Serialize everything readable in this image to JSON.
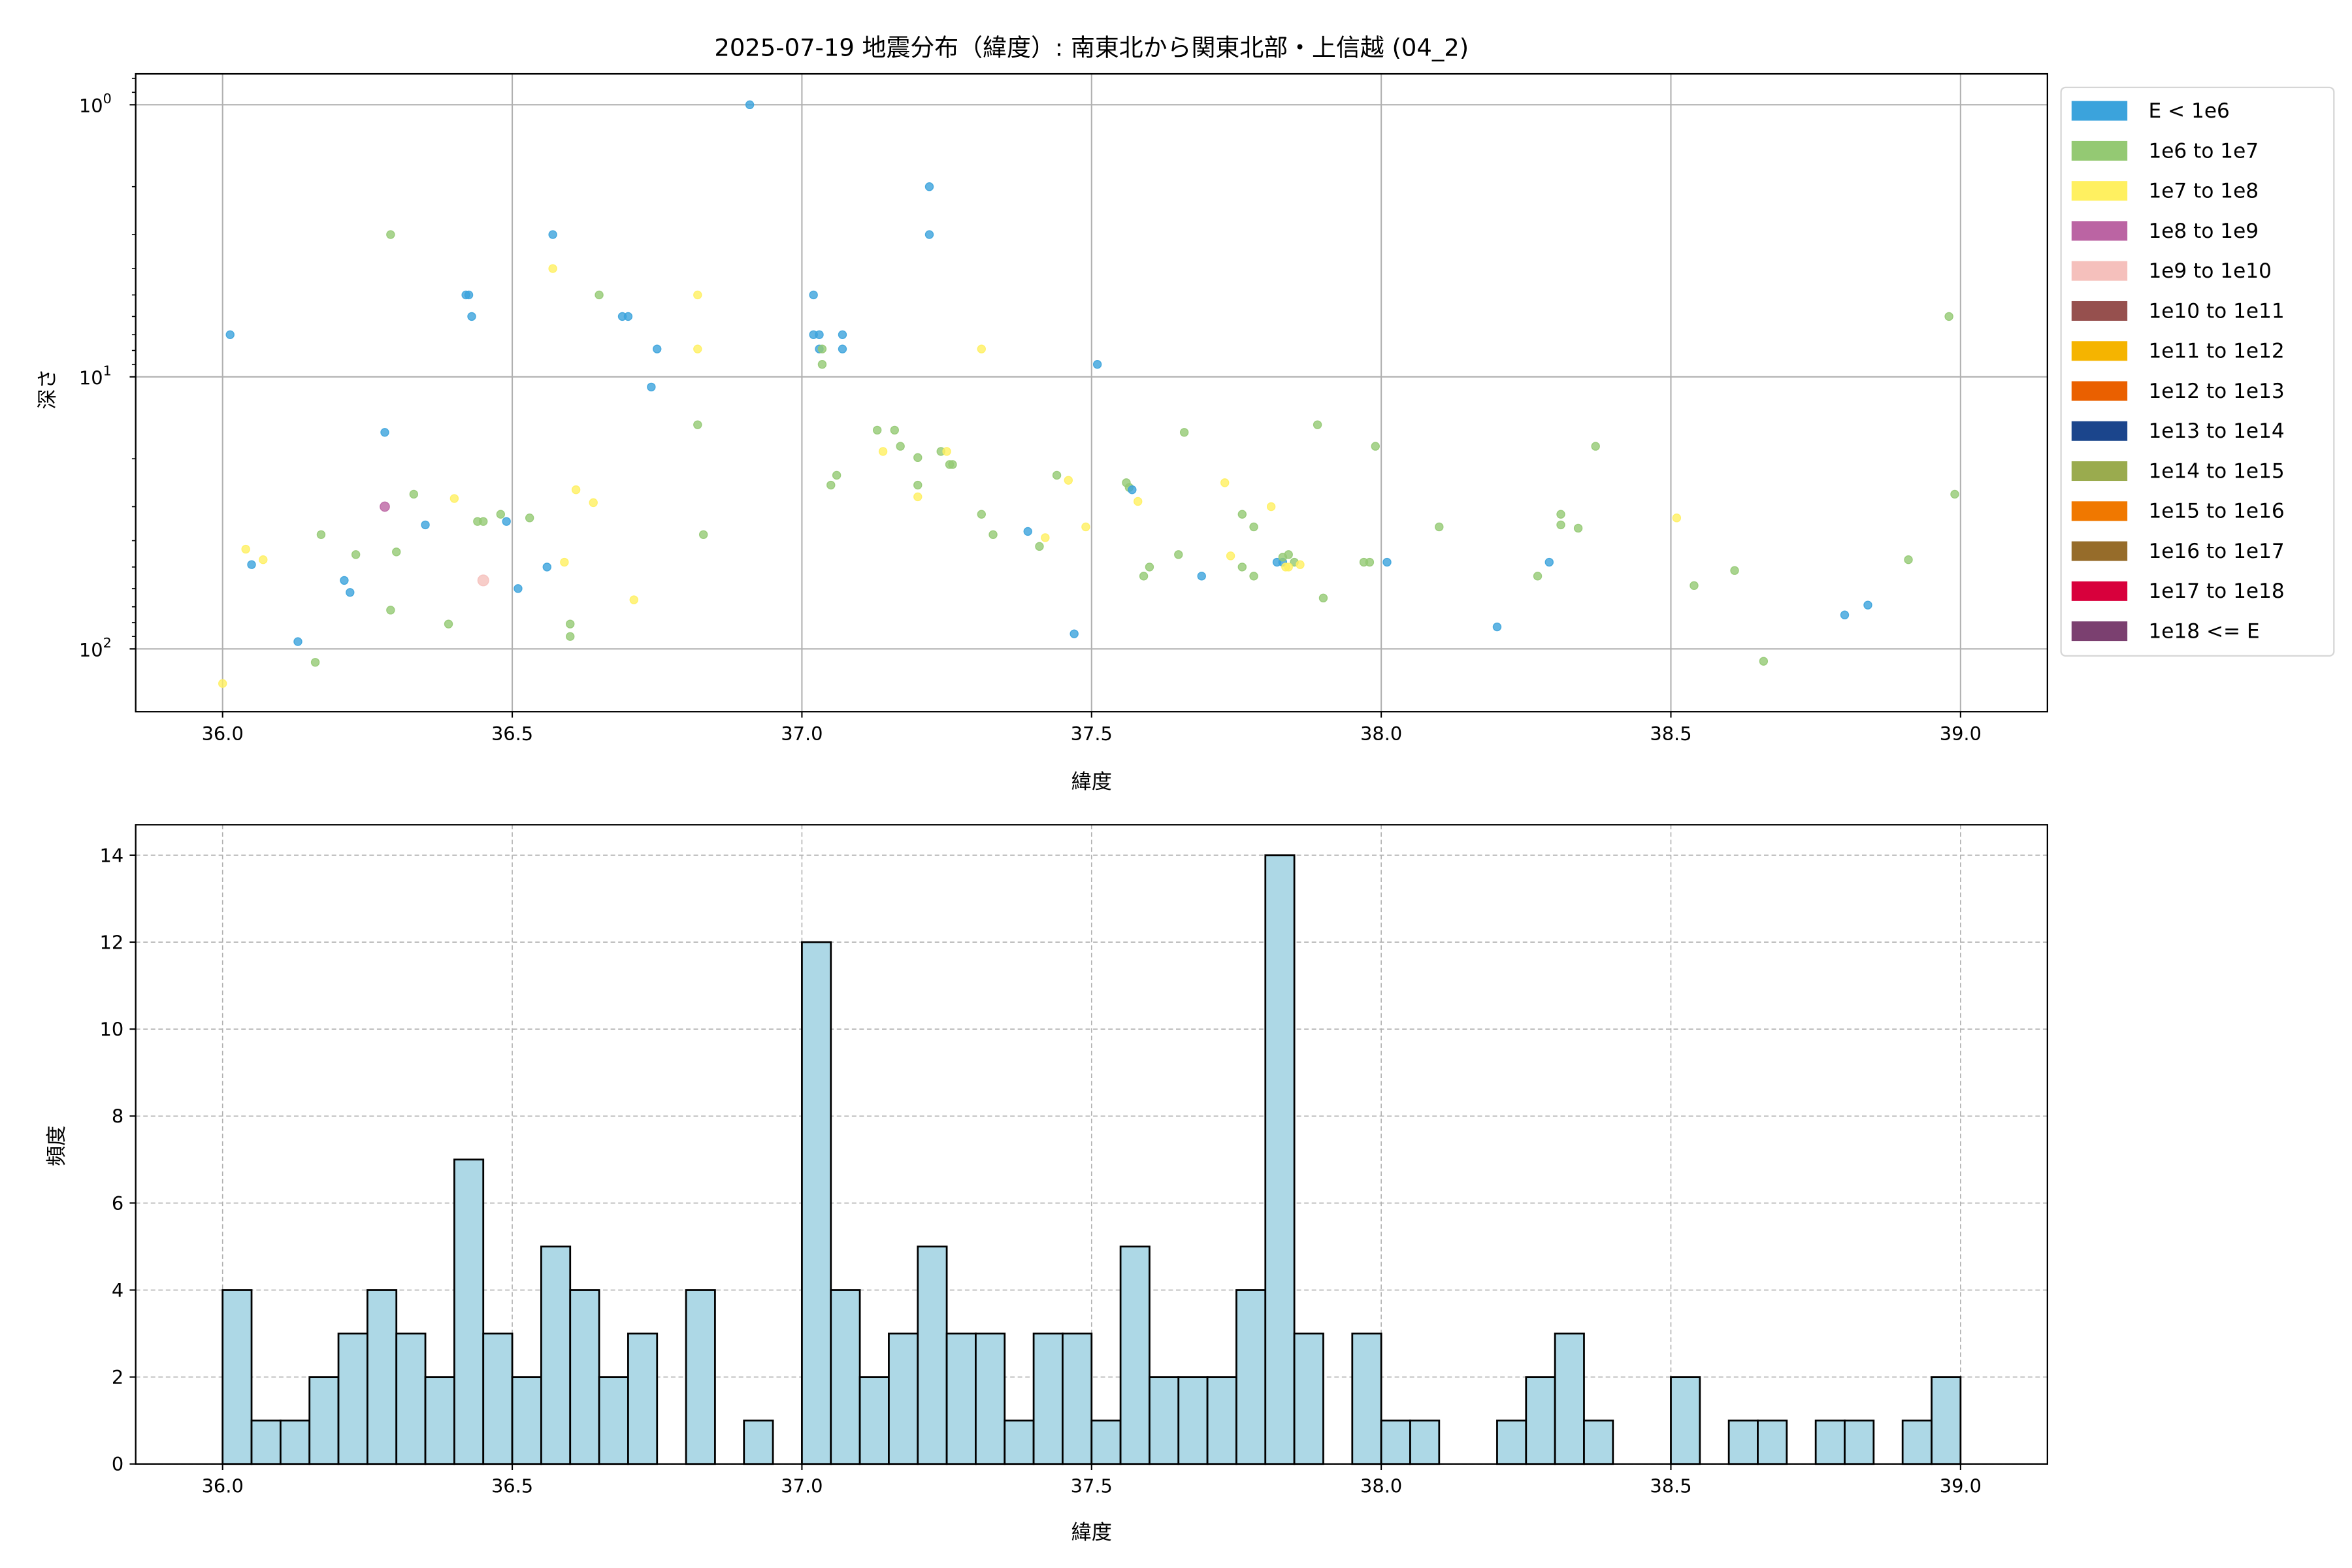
{
  "chart_data": [
    {
      "type": "scatter",
      "title": "2025-07-19 地震分布（緯度）: 南東北から関東北部・上信越 (04_2)",
      "xlabel": "緯度",
      "ylabel": "深さ",
      "xlim": [
        35.85,
        39.15
      ],
      "ylim": [
        0.77,
        170
      ],
      "yscale": "log",
      "yaxis_inverted": true,
      "grid": true,
      "x_ticks": [
        "36.0",
        "36.5",
        "37.0",
        "37.5",
        "38.0",
        "38.5",
        "39.0"
      ],
      "y_ticks": [
        {
          "base": "10",
          "exp": "0",
          "value": 1
        },
        {
          "base": "10",
          "exp": "1",
          "value": 10
        },
        {
          "base": "10",
          "exp": "2",
          "value": 100
        }
      ],
      "legend_placement": "outside-right",
      "legend": [
        {
          "label": "E < 1e6",
          "color": "#3ba3dc"
        },
        {
          "label": "1e6 to 1e7",
          "color": "#94c973"
        },
        {
          "label": "1e7 to 1e8",
          "color": "#fff060"
        },
        {
          "label": "1e8 to 1e9",
          "color": "#bb64a3"
        },
        {
          "label": "1e9 to 1e10",
          "color": "#f5c0bc"
        },
        {
          "label": "1e10 to 1e11",
          "color": "#96504e"
        },
        {
          "label": "1e11 to 1e12",
          "color": "#f5b400"
        },
        {
          "label": "1e12 to 1e13",
          "color": "#ea6000"
        },
        {
          "label": "1e13 to 1e14",
          "color": "#1b458c"
        },
        {
          "label": "1e14 to 1e15",
          "color": "#9aab4e"
        },
        {
          "label": "1e15 to 1e16",
          "color": "#f07800"
        },
        {
          "label": "1e16 to 1e17",
          "color": "#966c2a"
        },
        {
          "label": "1e17 to 1e18",
          "color": "#d8003c"
        },
        {
          "label": "1e18 <= E",
          "color": "#7b4070"
        }
      ],
      "points_format": [
        "latitude",
        "depth",
        "energy_class_index"
      ],
      "points": [
        [
          36.013,
          7,
          0
        ],
        [
          36.0,
          134,
          2
        ],
        [
          36.04,
          43,
          2
        ],
        [
          36.05,
          49,
          0
        ],
        [
          36.07,
          47,
          2
        ],
        [
          36.13,
          94,
          0
        ],
        [
          36.16,
          112,
          1
        ],
        [
          36.17,
          38,
          1
        ],
        [
          36.21,
          56,
          0
        ],
        [
          36.22,
          62,
          0
        ],
        [
          36.23,
          45,
          1
        ],
        [
          36.28,
          30,
          3
        ],
        [
          36.28,
          16,
          0
        ],
        [
          36.29,
          3.0,
          1
        ],
        [
          36.3,
          44,
          1
        ],
        [
          36.29,
          72,
          1
        ],
        [
          36.33,
          27,
          1
        ],
        [
          36.35,
          35,
          0
        ],
        [
          36.39,
          81,
          1
        ],
        [
          36.4,
          28,
          2
        ],
        [
          36.42,
          5.0,
          0
        ],
        [
          36.425,
          5.0,
          0
        ],
        [
          36.43,
          6.0,
          0
        ],
        [
          36.44,
          34,
          1
        ],
        [
          36.45,
          34,
          1
        ],
        [
          36.45,
          56,
          4
        ],
        [
          36.48,
          32,
          1
        ],
        [
          36.49,
          34,
          0
        ],
        [
          36.51,
          60,
          0
        ],
        [
          36.53,
          33,
          1
        ],
        [
          36.56,
          50,
          0
        ],
        [
          36.57,
          3.0,
          0
        ],
        [
          36.57,
          4.0,
          2
        ],
        [
          36.59,
          48,
          2
        ],
        [
          36.6,
          90,
          1
        ],
        [
          36.6,
          81,
          1
        ],
        [
          36.61,
          26,
          2
        ],
        [
          36.64,
          29,
          2
        ],
        [
          36.65,
          5.0,
          1
        ],
        [
          36.69,
          6.0,
          0
        ],
        [
          36.7,
          6.0,
          0
        ],
        [
          36.71,
          66,
          2
        ],
        [
          36.74,
          10.9,
          0
        ],
        [
          36.75,
          7.9,
          0
        ],
        [
          36.82,
          5.0,
          2
        ],
        [
          36.82,
          7.9,
          2
        ],
        [
          36.82,
          15,
          1
        ],
        [
          36.83,
          38,
          1
        ],
        [
          36.91,
          1.0,
          0
        ],
        [
          37.02,
          5.0,
          0
        ],
        [
          37.02,
          7.0,
          0
        ],
        [
          37.03,
          7.0,
          0
        ],
        [
          37.03,
          7.9,
          0
        ],
        [
          37.035,
          7.9,
          1
        ],
        [
          37.035,
          9.0,
          1
        ],
        [
          37.07,
          7.0,
          0
        ],
        [
          37.07,
          7.9,
          0
        ],
        [
          37.05,
          25,
          1
        ],
        [
          37.06,
          23,
          1
        ],
        [
          37.13,
          15.7,
          1
        ],
        [
          37.14,
          18.8,
          2
        ],
        [
          37.16,
          15.7,
          1
        ],
        [
          37.17,
          18,
          1
        ],
        [
          37.2,
          19.8,
          1
        ],
        [
          37.2,
          25,
          1
        ],
        [
          37.2,
          27.6,
          2
        ],
        [
          37.24,
          18.8,
          1
        ],
        [
          37.25,
          18.8,
          2
        ],
        [
          37.26,
          21,
          1
        ],
        [
          37.255,
          21,
          1
        ],
        [
          37.22,
          2.0,
          0
        ],
        [
          37.22,
          3.0,
          0
        ],
        [
          37.31,
          7.9,
          2
        ],
        [
          37.31,
          32,
          1
        ],
        [
          37.33,
          38,
          1
        ],
        [
          37.39,
          37,
          0
        ],
        [
          37.41,
          42,
          1
        ],
        [
          37.42,
          39,
          2
        ],
        [
          37.44,
          23,
          1
        ],
        [
          37.46,
          24,
          2
        ],
        [
          37.47,
          88,
          0
        ],
        [
          37.49,
          35.6,
          2
        ],
        [
          37.51,
          9.0,
          0
        ],
        [
          37.56,
          24.5,
          1
        ],
        [
          37.565,
          25.5,
          1
        ],
        [
          37.57,
          26,
          0
        ],
        [
          37.58,
          28.7,
          2
        ],
        [
          37.59,
          54,
          1
        ],
        [
          37.6,
          50,
          1
        ],
        [
          37.65,
          45,
          1
        ],
        [
          37.66,
          16,
          1
        ],
        [
          37.69,
          54,
          0
        ],
        [
          37.73,
          24.5,
          2
        ],
        [
          37.74,
          45.5,
          2
        ],
        [
          37.76,
          32,
          1
        ],
        [
          37.76,
          50,
          1
        ],
        [
          37.78,
          54,
          1
        ],
        [
          37.78,
          35.6,
          1
        ],
        [
          37.81,
          30,
          2
        ],
        [
          37.82,
          48,
          0
        ],
        [
          37.83,
          48,
          0
        ],
        [
          37.83,
          46,
          1
        ],
        [
          37.84,
          45,
          1
        ],
        [
          37.835,
          50,
          2
        ],
        [
          37.85,
          48,
          1
        ],
        [
          37.86,
          49,
          2
        ],
        [
          37.84,
          50,
          2
        ],
        [
          37.89,
          15,
          1
        ],
        [
          37.9,
          65,
          1
        ],
        [
          37.97,
          48,
          1
        ],
        [
          37.98,
          48,
          1
        ],
        [
          37.99,
          18,
          1
        ],
        [
          38.01,
          48,
          0
        ],
        [
          38.1,
          35.6,
          1
        ],
        [
          38.2,
          83,
          0
        ],
        [
          38.27,
          54,
          1
        ],
        [
          38.29,
          48,
          0
        ],
        [
          38.31,
          32,
          1
        ],
        [
          38.31,
          35,
          1
        ],
        [
          38.34,
          36,
          1
        ],
        [
          38.37,
          18,
          1
        ],
        [
          38.51,
          33,
          2
        ],
        [
          38.54,
          58.5,
          1
        ],
        [
          38.61,
          51.5,
          1
        ],
        [
          38.66,
          111,
          1
        ],
        [
          38.8,
          75,
          0
        ],
        [
          38.84,
          69,
          0
        ],
        [
          38.91,
          47,
          1
        ],
        [
          38.98,
          6.0,
          1
        ],
        [
          38.99,
          27,
          1
        ]
      ]
    },
    {
      "type": "bar",
      "subtype": "histogram",
      "xlabel": "緯度",
      "ylabel": "頻度",
      "xlim": [
        35.85,
        39.15
      ],
      "ylim": [
        0,
        14.7
      ],
      "grid": true,
      "grid_style": "dashed",
      "bar_color": "#add8e6",
      "edge_color": "#000000",
      "x_ticks": [
        "36.0",
        "36.5",
        "37.0",
        "37.5",
        "38.0",
        "38.5",
        "39.0"
      ],
      "y_ticks": [
        "0",
        "2",
        "4",
        "6",
        "8",
        "10",
        "12",
        "14"
      ],
      "bin_start": 36.0,
      "bin_width": 0.05,
      "counts": [
        4,
        1,
        1,
        2,
        3,
        4,
        3,
        2,
        7,
        3,
        2,
        5,
        4,
        2,
        3,
        0,
        4,
        0,
        1,
        0,
        12,
        4,
        2,
        3,
        5,
        3,
        3,
        1,
        3,
        3,
        1,
        5,
        2,
        2,
        2,
        4,
        14,
        3,
        0,
        3,
        1,
        1,
        0,
        0,
        1,
        2,
        3,
        1,
        0,
        0,
        2,
        0,
        1,
        1,
        0,
        1,
        1,
        0,
        1,
        2
      ]
    }
  ]
}
